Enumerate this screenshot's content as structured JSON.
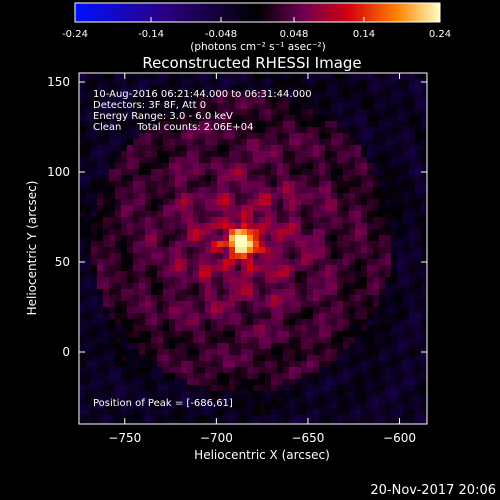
{
  "colorbar": {
    "ticks": [
      "-0.24",
      "-0.14",
      "-0.048",
      "0.048",
      "0.14",
      "0.24"
    ],
    "range": [
      -0.24,
      0.24
    ],
    "units": "(photons cm⁻² s⁻¹ asec⁻²)"
  },
  "chart_data": {
    "type": "heatmap",
    "title": "Reconstructed RHESSI Image",
    "xlabel": "Heliocentric X (arcsec)",
    "ylabel": "Heliocentric Y (arcsec)",
    "xlim": [
      -775,
      -585
    ],
    "ylim": [
      -40,
      155
    ],
    "xticks": [
      -750,
      -700,
      -650,
      -600
    ],
    "yticks": [
      0,
      50,
      100,
      150
    ],
    "annotations": [
      "10-Aug-2016 06:21:44.000 to 06:31:44.000",
      "Detectors: 3F 8F, Att 0",
      "Energy Range: 3.0 - 6.0 keV",
      "Clean     Total counts: 2.06E+04"
    ],
    "peak_label": "Position of Peak = [-686,61]",
    "peak": {
      "x": -686,
      "y": 61,
      "value": 0.24
    },
    "colormap": "blue-black-red-yellow-white"
  },
  "footer": {
    "date": "20-Nov-2017 20:06"
  }
}
